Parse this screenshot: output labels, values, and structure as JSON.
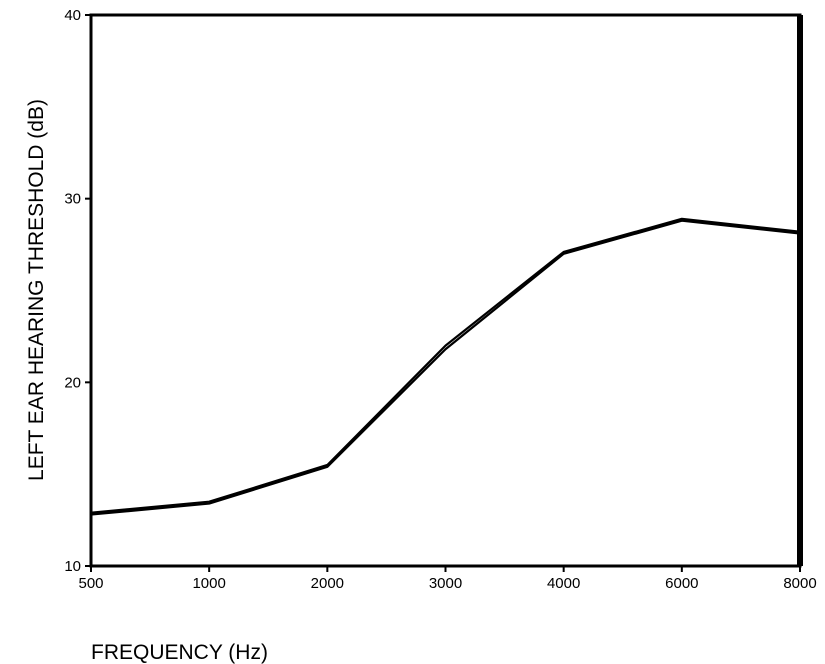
{
  "chart_data": {
    "type": "line",
    "title": "",
    "xlabel": "FREQUENCY (Hz)",
    "ylabel": "LEFT EAR HEARING THRESHOLD (dB)",
    "x_scale": "categorical",
    "categories": [
      "500",
      "1000",
      "2000",
      "3000",
      "4000",
      "6000",
      "8000"
    ],
    "series": [
      {
        "values": [
          12.9,
          13.5,
          15.5,
          22.0,
          27.1,
          28.9,
          28.2
        ]
      },
      {
        "values": [
          12.8,
          13.4,
          15.4,
          21.8,
          27.0,
          28.8,
          28.1
        ]
      }
    ],
    "y_ticks": [
      "10",
      "20",
      "30",
      "40"
    ],
    "ylim": [
      10,
      40
    ],
    "grid": false,
    "legend": "none",
    "line_color": "#000000"
  }
}
